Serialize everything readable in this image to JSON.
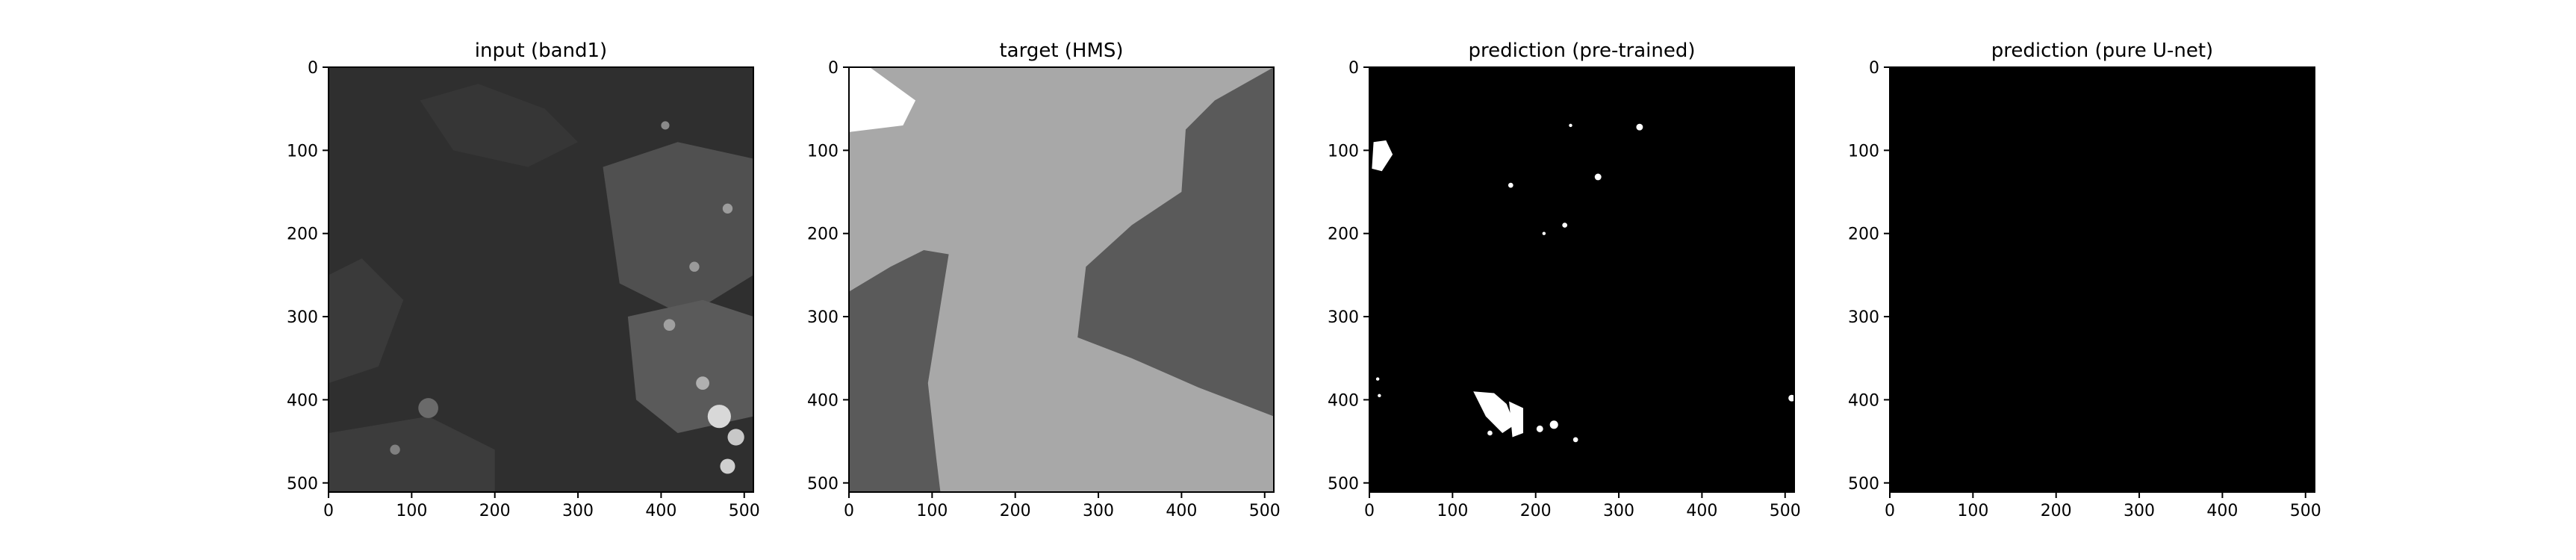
{
  "chart_data": [
    {
      "type": "heatmap",
      "title": "input (band1)",
      "colormap": "gray",
      "background_color": "#2f2f2f",
      "xlim": [
        0,
        511
      ],
      "ylim": [
        511,
        0
      ],
      "x_ticks": [
        0,
        100,
        200,
        300,
        400,
        500
      ],
      "y_ticks": [
        0,
        100,
        200,
        300,
        400,
        500
      ],
      "x_tick_labels": [
        "0",
        "100",
        "200",
        "300",
        "400",
        "500"
      ],
      "y_tick_labels": [
        "0",
        "100",
        "200",
        "300",
        "400",
        "500"
      ],
      "regions": [
        {
          "points": [
            [
              0,
              0
            ],
            [
              511,
              0
            ],
            [
              511,
              511
            ],
            [
              0,
              511
            ]
          ],
          "color": "#2f2f2f"
        },
        {
          "points": [
            [
              0,
              250
            ],
            [
              40,
              230
            ],
            [
              90,
              280
            ],
            [
              60,
              360
            ],
            [
              0,
              380
            ]
          ],
          "color": "#3a3a3a"
        },
        {
          "points": [
            [
              330,
              120
            ],
            [
              420,
              90
            ],
            [
              511,
              110
            ],
            [
              511,
              250
            ],
            [
              430,
              300
            ],
            [
              350,
              260
            ]
          ],
          "color": "#505050"
        },
        {
          "points": [
            [
              360,
              300
            ],
            [
              450,
              280
            ],
            [
              511,
              300
            ],
            [
              511,
              420
            ],
            [
              420,
              440
            ],
            [
              370,
              400
            ]
          ],
          "color": "#5a5a5a"
        },
        {
          "points": [
            [
              110,
              40
            ],
            [
              180,
              20
            ],
            [
              260,
              50
            ],
            [
              300,
              90
            ],
            [
              240,
              120
            ],
            [
              150,
              100
            ]
          ],
          "color": "#363636"
        },
        {
          "points": [
            [
              0,
              440
            ],
            [
              120,
              420
            ],
            [
              200,
              460
            ],
            [
              200,
              511
            ],
            [
              0,
              511
            ]
          ],
          "color": "#3c3c3c"
        }
      ],
      "blobs": [
        {
          "x": 470,
          "y": 420,
          "r": 14,
          "color": "#d8d8d8"
        },
        {
          "x": 490,
          "y": 445,
          "r": 10,
          "color": "#c8c8c8"
        },
        {
          "x": 480,
          "y": 480,
          "r": 9,
          "color": "#cfcfcf"
        },
        {
          "x": 450,
          "y": 380,
          "r": 8,
          "color": "#b0b0b0"
        },
        {
          "x": 410,
          "y": 310,
          "r": 7,
          "color": "#a0a0a0"
        },
        {
          "x": 440,
          "y": 240,
          "r": 6,
          "color": "#9a9a9a"
        },
        {
          "x": 480,
          "y": 170,
          "r": 6,
          "color": "#9c9c9c"
        },
        {
          "x": 405,
          "y": 70,
          "r": 5,
          "color": "#8a8a8a"
        },
        {
          "x": 120,
          "y": 410,
          "r": 12,
          "color": "#6a6a6a"
        },
        {
          "x": 80,
          "y": 460,
          "r": 6,
          "color": "#808080"
        }
      ]
    },
    {
      "type": "heatmap",
      "title": "target (HMS)",
      "colormap": "gray",
      "background_color": "#a8a8a8",
      "xlim": [
        0,
        511
      ],
      "ylim": [
        511,
        0
      ],
      "x_ticks": [
        0,
        100,
        200,
        300,
        400,
        500
      ],
      "y_ticks": [
        0,
        100,
        200,
        300,
        400,
        500
      ],
      "x_tick_labels": [
        "0",
        "100",
        "200",
        "300",
        "400",
        "500"
      ],
      "y_tick_labels": [
        "0",
        "100",
        "200",
        "300",
        "400",
        "500"
      ],
      "regions": [
        {
          "points": [
            [
              0,
              0
            ],
            [
              511,
              0
            ],
            [
              511,
              511
            ],
            [
              0,
              511
            ]
          ],
          "color": "#a8a8a8"
        },
        {
          "points": [
            [
              0,
              0
            ],
            [
              25,
              0
            ],
            [
              80,
              40
            ],
            [
              65,
              70
            ],
            [
              0,
              78
            ]
          ],
          "color": "#ffffff"
        },
        {
          "points": [
            [
              511,
              0
            ],
            [
              440,
              40
            ],
            [
              405,
              75
            ],
            [
              400,
              150
            ],
            [
              340,
              190
            ],
            [
              285,
              240
            ],
            [
              275,
              325
            ],
            [
              340,
              350
            ],
            [
              420,
              385
            ],
            [
              511,
              420
            ]
          ],
          "color": "#5a5a5a"
        },
        {
          "points": [
            [
              0,
              270
            ],
            [
              50,
              240
            ],
            [
              90,
              220
            ],
            [
              120,
              225
            ],
            [
              95,
              380
            ],
            [
              105,
              470
            ],
            [
              110,
              511
            ],
            [
              0,
              511
            ]
          ],
          "color": "#5a5a5a"
        }
      ],
      "blobs": []
    },
    {
      "type": "heatmap",
      "title": "prediction (pre-trained)",
      "colormap": "gray",
      "background_color": "#000000",
      "xlim": [
        0,
        511
      ],
      "ylim": [
        511,
        0
      ],
      "x_ticks": [
        0,
        100,
        200,
        300,
        400,
        500
      ],
      "y_ticks": [
        0,
        100,
        200,
        300,
        400,
        500
      ],
      "x_tick_labels": [
        "0",
        "100",
        "200",
        "300",
        "400",
        "500"
      ],
      "y_tick_labels": [
        "0",
        "100",
        "200",
        "300",
        "400",
        "500"
      ],
      "regions": [
        {
          "points": [
            [
              0,
              0
            ],
            [
              511,
              0
            ],
            [
              511,
              511
            ],
            [
              0,
              511
            ]
          ],
          "color": "#000000"
        },
        {
          "points": [
            [
              5,
              90
            ],
            [
              20,
              88
            ],
            [
              28,
              105
            ],
            [
              15,
              125
            ],
            [
              3,
              122
            ]
          ],
          "color": "#ffffff"
        },
        {
          "points": [
            [
              125,
              390
            ],
            [
              150,
              392
            ],
            [
              165,
              405
            ],
            [
              175,
              430
            ],
            [
              160,
              440
            ],
            [
              140,
              420
            ]
          ],
          "color": "#ffffff"
        },
        {
          "points": [
            [
              168,
              402
            ],
            [
              185,
              410
            ],
            [
              185,
              440
            ],
            [
              172,
              445
            ]
          ],
          "color": "#ffffff"
        }
      ],
      "blobs": [
        {
          "x": 325,
          "y": 72,
          "r": 4,
          "color": "#ffffff"
        },
        {
          "x": 242,
          "y": 70,
          "r": 2,
          "color": "#ffffff"
        },
        {
          "x": 275,
          "y": 132,
          "r": 4,
          "color": "#ffffff"
        },
        {
          "x": 170,
          "y": 142,
          "r": 3,
          "color": "#ffffff"
        },
        {
          "x": 235,
          "y": 190,
          "r": 3,
          "color": "#ffffff"
        },
        {
          "x": 210,
          "y": 200,
          "r": 2,
          "color": "#ffffff"
        },
        {
          "x": 10,
          "y": 375,
          "r": 2,
          "color": "#ffffff"
        },
        {
          "x": 12,
          "y": 395,
          "r": 2,
          "color": "#ffffff"
        },
        {
          "x": 205,
          "y": 435,
          "r": 4,
          "color": "#ffffff"
        },
        {
          "x": 222,
          "y": 430,
          "r": 5,
          "color": "#ffffff"
        },
        {
          "x": 248,
          "y": 448,
          "r": 3,
          "color": "#ffffff"
        },
        {
          "x": 145,
          "y": 440,
          "r": 3,
          "color": "#ffffff"
        },
        {
          "x": 508,
          "y": 398,
          "r": 4,
          "color": "#ffffff"
        }
      ]
    },
    {
      "type": "heatmap",
      "title": "prediction (pure U-net)",
      "colormap": "gray",
      "background_color": "#000000",
      "xlim": [
        0,
        511
      ],
      "ylim": [
        511,
        0
      ],
      "x_ticks": [
        0,
        100,
        200,
        300,
        400,
        500
      ],
      "y_ticks": [
        0,
        100,
        200,
        300,
        400,
        500
      ],
      "x_tick_labels": [
        "0",
        "100",
        "200",
        "300",
        "400",
        "500"
      ],
      "y_tick_labels": [
        "0",
        "100",
        "200",
        "300",
        "400",
        "500"
      ],
      "regions": [
        {
          "points": [
            [
              0,
              0
            ],
            [
              511,
              0
            ],
            [
              511,
              511
            ],
            [
              0,
              511
            ]
          ],
          "color": "#000000"
        }
      ],
      "blobs": []
    }
  ]
}
